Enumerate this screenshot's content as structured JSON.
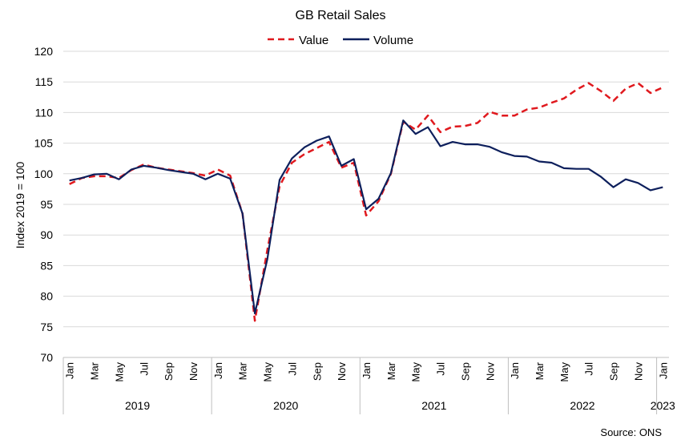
{
  "chart_data": {
    "type": "line",
    "title": "GB Retail  Sales",
    "ylabel": "Index 2019 = 100",
    "xlabel": "",
    "ylim": [
      70,
      120
    ],
    "yticks": [
      70,
      75,
      80,
      85,
      90,
      95,
      100,
      105,
      110,
      115,
      120
    ],
    "grid": "horizontal",
    "legend": "top-center",
    "source": "Source: ONS",
    "month_labels": [
      "Jan",
      "",
      "Mar",
      "",
      "May",
      "",
      "Jul",
      "",
      "Sep",
      "",
      "Nov",
      "",
      "Jan",
      "",
      "Mar",
      "",
      "May",
      "",
      "Jul",
      "",
      "Sep",
      "",
      "Nov",
      "",
      "Jan",
      "",
      "Mar",
      "",
      "May",
      "",
      "Jul",
      "",
      "Sep",
      "",
      "Nov",
      "",
      "Jan",
      "",
      "Mar",
      "",
      "May",
      "",
      "Jul",
      "",
      "Sep",
      "",
      "Nov",
      "",
      "Jan"
    ],
    "years": [
      {
        "label": "2019",
        "start": 0,
        "end": 11
      },
      {
        "label": "2020",
        "start": 12,
        "end": 23
      },
      {
        "label": "2021",
        "start": 24,
        "end": 35
      },
      {
        "label": "2022",
        "start": 36,
        "end": 47
      },
      {
        "label": "2023",
        "start": 48,
        "end": 48
      }
    ],
    "categories": [
      "2019-01",
      "2019-02",
      "2019-03",
      "2019-04",
      "2019-05",
      "2019-06",
      "2019-07",
      "2019-08",
      "2019-09",
      "2019-10",
      "2019-11",
      "2019-12",
      "2020-01",
      "2020-02",
      "2020-03",
      "2020-04",
      "2020-05",
      "2020-06",
      "2020-07",
      "2020-08",
      "2020-09",
      "2020-10",
      "2020-11",
      "2020-12",
      "2021-01",
      "2021-02",
      "2021-03",
      "2021-04",
      "2021-05",
      "2021-06",
      "2021-07",
      "2021-08",
      "2021-09",
      "2021-10",
      "2021-11",
      "2021-12",
      "2022-01",
      "2022-02",
      "2022-03",
      "2022-04",
      "2022-05",
      "2022-06",
      "2022-07",
      "2022-08",
      "2022-09",
      "2022-10",
      "2022-11",
      "2022-12",
      "2023-01"
    ],
    "series": [
      {
        "name": "Value",
        "color": "#e0191e",
        "style": "dashed",
        "values": [
          98.3,
          99.3,
          99.6,
          99.6,
          99.3,
          100.6,
          101.5,
          101.0,
          100.7,
          100.4,
          100.1,
          99.7,
          100.7,
          99.7,
          93.5,
          76.0,
          87.5,
          98.0,
          101.8,
          103.2,
          104.2,
          105.2,
          101.0,
          101.8,
          93.2,
          95.5,
          100.0,
          108.5,
          107.2,
          109.5,
          106.8,
          107.7,
          107.8,
          108.3,
          110.1,
          109.5,
          109.5,
          110.5,
          110.8,
          111.6,
          112.3,
          113.7,
          114.8,
          113.5,
          111.9,
          113.9,
          114.8,
          113.2,
          114.1
        ]
      },
      {
        "name": "Volume",
        "color": "#0d1f5c",
        "style": "solid",
        "values": [
          98.9,
          99.3,
          99.9,
          100.0,
          99.1,
          100.7,
          101.3,
          101.0,
          100.6,
          100.3,
          100.0,
          99.1,
          100.0,
          99.2,
          93.5,
          77.2,
          86.0,
          99.0,
          102.5,
          104.3,
          105.4,
          106.1,
          101.3,
          102.4,
          94.2,
          95.9,
          100.1,
          108.7,
          106.5,
          107.6,
          104.5,
          105.2,
          104.8,
          104.8,
          104.4,
          103.5,
          102.9,
          102.8,
          102.0,
          101.8,
          100.9,
          100.8,
          100.8,
          99.5,
          97.8,
          99.1,
          98.5,
          97.3,
          97.8
        ]
      }
    ]
  }
}
